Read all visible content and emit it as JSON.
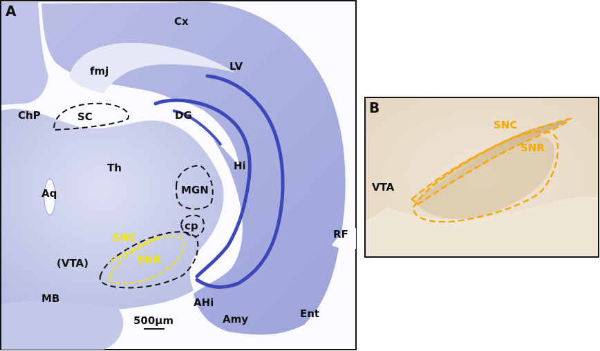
{
  "panel_a": {
    "letter": "A",
    "labels": {
      "cx": "Cx",
      "lv": "LV",
      "fmj": "fmj",
      "chp": "ChP",
      "sc": "SC",
      "dg": "DG",
      "hi": "Hi",
      "th": "Th",
      "aq": "Aq",
      "mgn": "MGN",
      "cp": "cp",
      "rf": "RF",
      "snc": "SNC",
      "snr": "SNR",
      "vta": "(VTA)",
      "mb": "MB",
      "ahi": "AHi",
      "amy": "Amy",
      "ent": "Ent"
    },
    "scale_bar": "500µm"
  },
  "panel_b": {
    "letter": "B",
    "labels": {
      "snc": "SNC",
      "snr": "SNR",
      "vta": "VTA"
    }
  },
  "colors": {
    "nissl_tissue": "#c9cce9",
    "nissl_dark": "#3c47b8",
    "panel_b_background": "#ece0cf",
    "outline_black": "#111111",
    "outline_yellow_a": "#f2e600",
    "outline_orange_b": "#f5a800"
  }
}
